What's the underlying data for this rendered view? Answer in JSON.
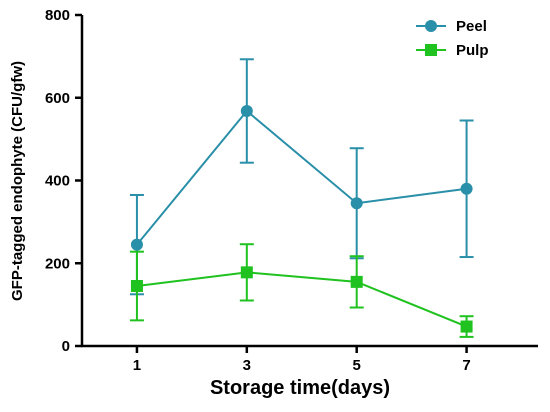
{
  "chart_data": {
    "type": "line",
    "title": "",
    "xlabel": "Storage time(days)",
    "ylabel": "GFP-tagged endophyte (CFU/gfw)",
    "x": [
      1,
      3,
      5,
      7
    ],
    "xticks": [
      "1",
      "3",
      "5",
      "7"
    ],
    "xlim": [
      0,
      8.3
    ],
    "ylim": [
      0,
      800
    ],
    "yticks": [
      "0",
      "200",
      "400",
      "600",
      "800"
    ],
    "grid": false,
    "legend_position": "top-right",
    "series": [
      {
        "name": "Peel",
        "marker": "circle",
        "color": "#2A8FA8",
        "values": [
          245,
          568,
          345,
          380
        ],
        "error": [
          120,
          125,
          133,
          165
        ]
      },
      {
        "name": "Pulp",
        "marker": "square",
        "color": "#1FC21F",
        "values": [
          145,
          178,
          155,
          47
        ],
        "error": [
          83,
          68,
          62,
          25
        ]
      }
    ]
  }
}
